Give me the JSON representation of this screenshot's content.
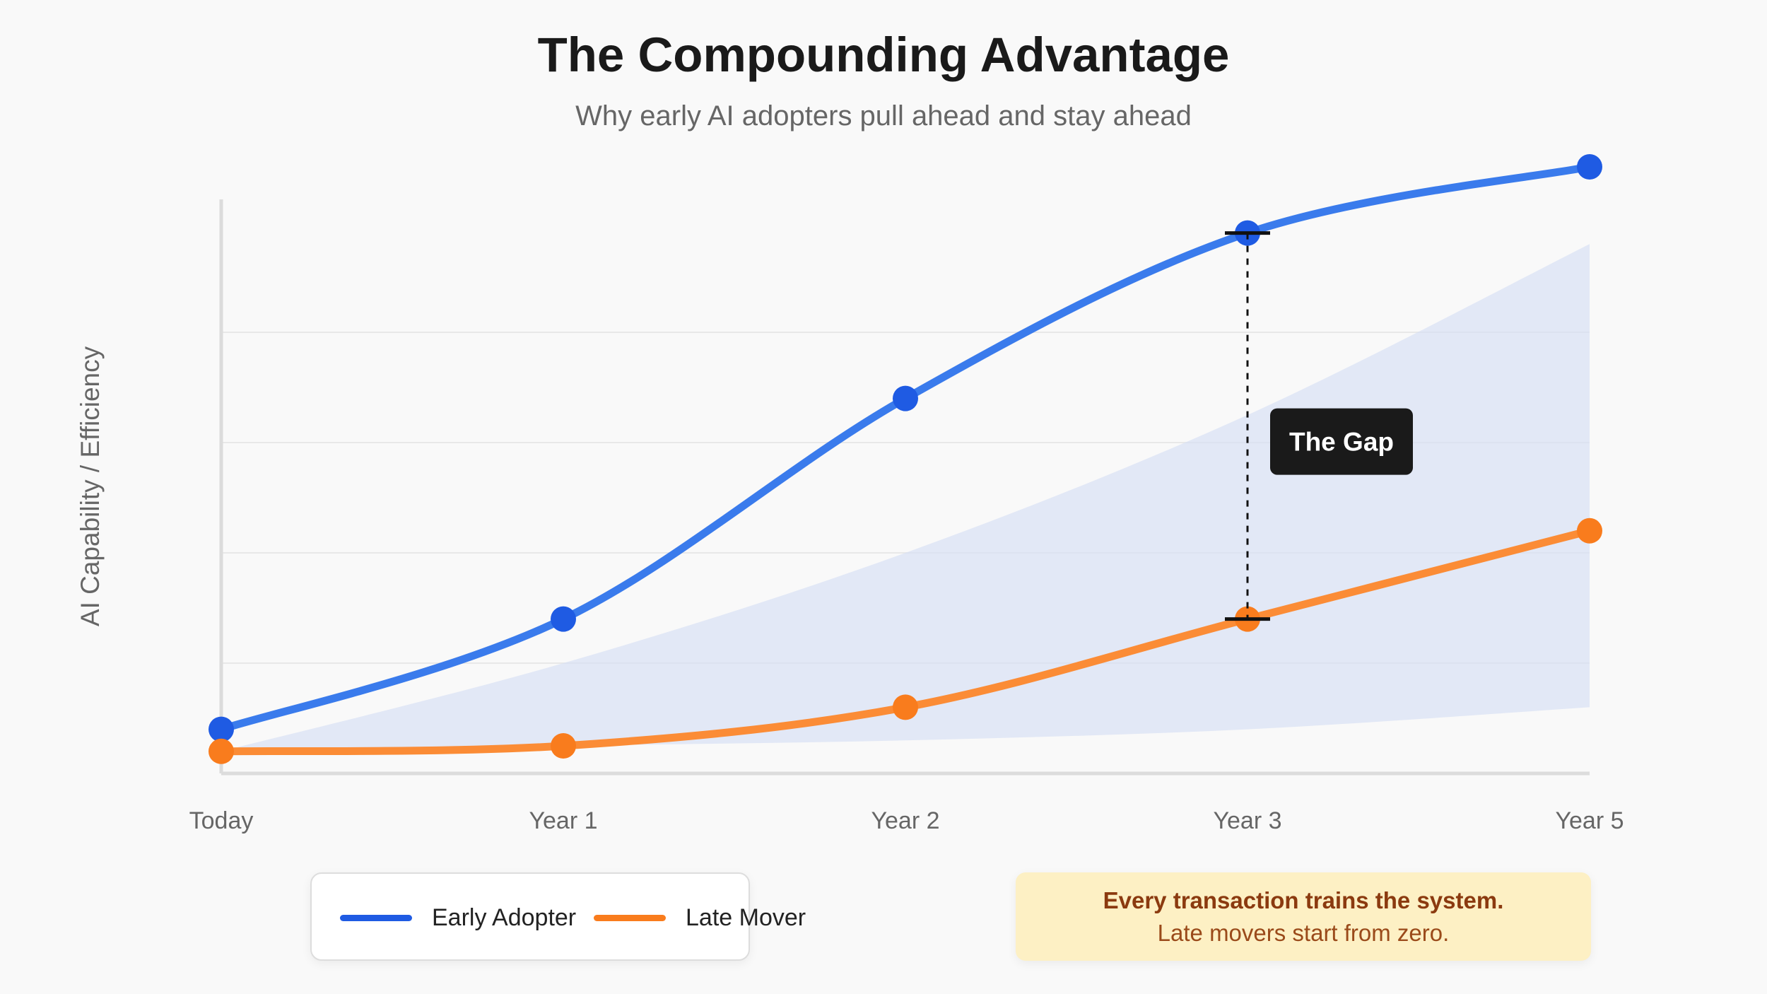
{
  "title": "The Compounding Advantage",
  "subtitle": "Why early AI adopters pull ahead and stay ahead",
  "chart_data": {
    "type": "line",
    "categories": [
      "Today",
      "Year 1",
      "Year 2",
      "Year 3",
      "Year 5"
    ],
    "ylabel": "AI Capability / Efficiency",
    "xlabel": "",
    "ylim": [
      0,
      100
    ],
    "grid": true,
    "legend_position": "bottom-left",
    "series": [
      {
        "name": "Early Adopter",
        "color": "#1f5be3",
        "values": [
          8,
          28,
          68,
          98,
          110
        ]
      },
      {
        "name": "Late Mover",
        "color": "#f97c1d",
        "values": [
          4,
          5,
          12,
          28,
          44
        ]
      }
    ],
    "gap_band": {
      "color": "#d6def5",
      "lower": [
        4,
        5,
        6,
        8,
        12
      ],
      "upper": [
        4,
        20,
        40,
        65,
        96
      ]
    },
    "annotation": {
      "label": "The Gap",
      "at_category": "Year 3"
    }
  },
  "callout": {
    "headline": "Every transaction trains the system.",
    "body": "Late movers start from zero."
  }
}
